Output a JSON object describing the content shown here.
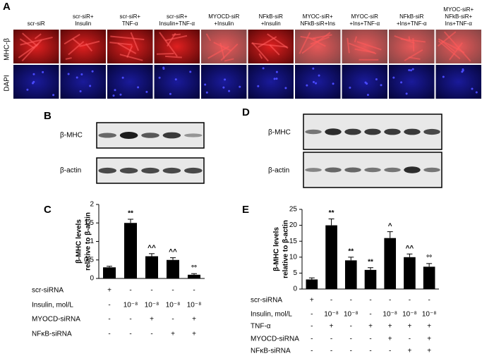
{
  "panel_a": {
    "label": "A",
    "row_labels": [
      "MHC-β",
      "DAPI"
    ],
    "columns": [
      [
        "scr-siR"
      ],
      [
        "scr-siR+",
        "Insulin"
      ],
      [
        "scr-siR+",
        "TNF-α"
      ],
      [
        "scr-siR+",
        "Insulin+TNF-α"
      ],
      [
        "MYOCD-siR",
        "+Insulin"
      ],
      [
        "NFkB-siR",
        "+Insulin"
      ],
      [
        "MYOC-siR+",
        "NFkB-siR+Ins"
      ],
      [
        "MYOC-siR",
        "+Ins+TNF-α"
      ],
      [
        "NFkB-siR",
        "+Ins+TNF-α"
      ],
      [
        "MYOC-siR+",
        "NFkB-siR+",
        "Ins+TNF-α"
      ]
    ]
  },
  "panel_b": {
    "label": "B",
    "rows": [
      "β-MHC",
      "β-actin"
    ]
  },
  "panel_d": {
    "label": "D",
    "rows": [
      "β-MHC",
      "β-actin"
    ]
  },
  "chart_data": [
    {
      "type": "bar",
      "label": "C",
      "ylabel": [
        "β-MHC levels",
        "relative to β-actin"
      ],
      "color": "#000000",
      "categories": [
        null,
        null,
        null,
        null,
        null
      ],
      "values": [
        0.3,
        1.5,
        0.6,
        0.5,
        0.1
      ],
      "errors": [
        0.03,
        0.1,
        0.07,
        0.06,
        0.03
      ],
      "significance": [
        null,
        "**",
        "^^",
        "^^",
        "°°"
      ],
      "ylim": [
        0,
        2
      ],
      "yticks": [
        0,
        {
          "value": 0.5,
          "label": "0,5"
        },
        1,
        {
          "value": 1.5,
          "label": "1,5"
        },
        2
      ],
      "treatments": [
        {
          "name": "scr-siRNA",
          "marks": [
            "+",
            "-",
            "-",
            "-",
            "-"
          ]
        },
        {
          "name": "Insulin, mol/L",
          "marks": [
            "-",
            "10⁻⁸",
            "10⁻⁸",
            "10⁻⁸",
            "10⁻⁸"
          ]
        },
        {
          "name": "MYOCD-siRNA",
          "marks": [
            "-",
            "-",
            "+",
            "-",
            "+"
          ]
        },
        {
          "name": "NFκB-siRNA",
          "marks": [
            "-",
            "-",
            "-",
            "+",
            "+"
          ]
        }
      ]
    },
    {
      "type": "bar",
      "label": "E",
      "ylabel": [
        "β-MHC levels",
        "relative to β-actin"
      ],
      "color": "#000000",
      "categories": [
        null,
        null,
        null,
        null,
        null,
        null,
        null
      ],
      "values": [
        3,
        20,
        9,
        6,
        16,
        10,
        7
      ],
      "errors": [
        0.5,
        2,
        1,
        0.7,
        2,
        1,
        1
      ],
      "significance": [
        null,
        "**",
        "**",
        "**",
        "^",
        "^^",
        "°°"
      ],
      "ylim": [
        0,
        25
      ],
      "yticks": [
        0,
        5,
        10,
        15,
        20,
        25
      ],
      "treatments": [
        {
          "name": "scr-siRNA",
          "marks": [
            "+",
            "-",
            "-",
            "-",
            "-",
            "-",
            "-"
          ]
        },
        {
          "name": "Insulin, mol/L",
          "marks": [
            "-",
            "10⁻⁸",
            "10⁻⁸",
            "-",
            "10⁻⁸",
            "10⁻⁸",
            "10⁻⁸"
          ]
        },
        {
          "name": "TNF-α",
          "marks": [
            "-",
            "+",
            "-",
            "+",
            "+",
            "+",
            "+"
          ]
        },
        {
          "name": "MYOCD-siRNA",
          "marks": [
            "-",
            "-",
            "-",
            "-",
            "+",
            "-",
            "+"
          ]
        },
        {
          "name": "NFκB-siRNA",
          "marks": [
            "-",
            "-",
            "-",
            "-",
            "-",
            "+",
            "+"
          ]
        }
      ]
    }
  ]
}
